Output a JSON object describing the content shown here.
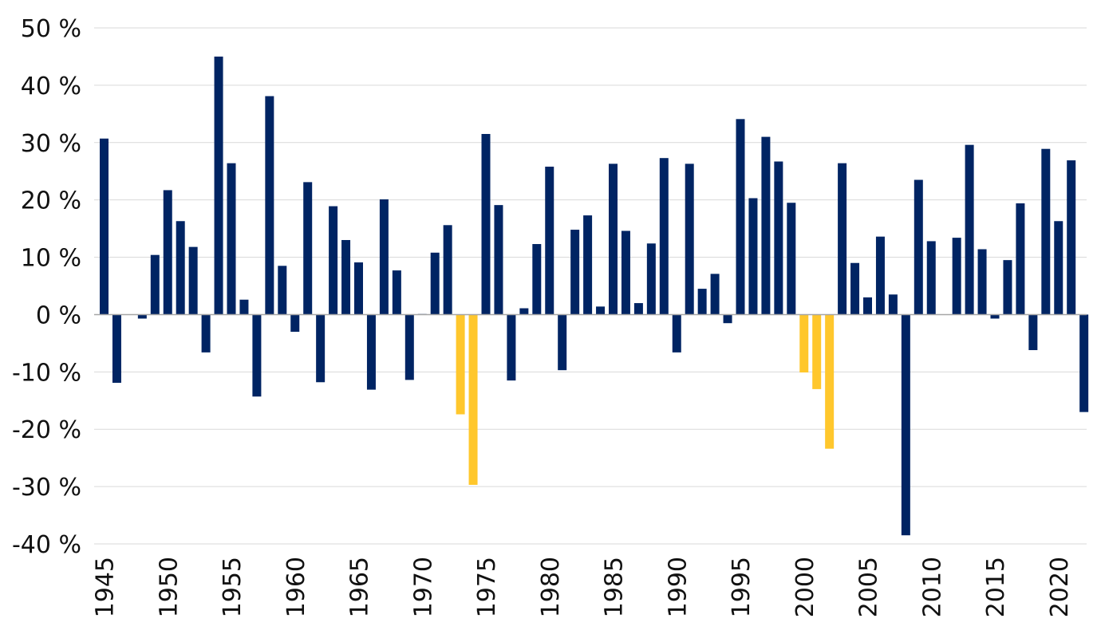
{
  "chart_data": {
    "type": "bar",
    "title": "",
    "xlabel": "",
    "ylabel": "",
    "ylim": [
      -40,
      50
    ],
    "y_ticks": [
      50,
      40,
      30,
      20,
      10,
      0,
      -10,
      -20,
      -30,
      -40
    ],
    "y_tick_labels": [
      "50 %",
      "40 %",
      "30 %",
      "20 %",
      "10 %",
      "0 %",
      "-10 %",
      "-20 %",
      "-30 %",
      "-40 %"
    ],
    "x_tick_labels": [
      "1945",
      "1950",
      "1955",
      "1960",
      "1965",
      "1970",
      "1975",
      "1980",
      "1985",
      "1990",
      "1995",
      "2000",
      "2005",
      "2010",
      "2015",
      "2020"
    ],
    "grid": true,
    "legend": "none",
    "colors": {
      "default": "#002463",
      "highlight": "#ffc72c"
    },
    "highlight_years": [
      1973,
      1974,
      2000,
      2001,
      2002
    ],
    "categories": [
      1945,
      1946,
      1947,
      1948,
      1949,
      1950,
      1951,
      1952,
      1953,
      1954,
      1955,
      1956,
      1957,
      1958,
      1959,
      1960,
      1961,
      1962,
      1963,
      1964,
      1965,
      1966,
      1967,
      1968,
      1969,
      1970,
      1971,
      1972,
      1973,
      1974,
      1975,
      1976,
      1977,
      1978,
      1979,
      1980,
      1981,
      1982,
      1983,
      1984,
      1985,
      1986,
      1987,
      1988,
      1989,
      1990,
      1991,
      1992,
      1993,
      1994,
      1995,
      1996,
      1997,
      1998,
      1999,
      2000,
      2001,
      2002,
      2003,
      2004,
      2005,
      2006,
      2007,
      2008,
      2009,
      2010,
      2011,
      2012,
      2013,
      2014,
      2015,
      2016,
      2017,
      2018,
      2019,
      2020,
      2021,
      2022
    ],
    "values": [
      30.7,
      -11.9,
      0,
      -0.7,
      10.4,
      21.7,
      16.3,
      11.8,
      -6.6,
      45.0,
      26.4,
      2.6,
      -14.3,
      38.1,
      8.5,
      -3.0,
      23.1,
      -11.8,
      18.9,
      13.0,
      9.1,
      -13.1,
      20.1,
      7.7,
      -11.4,
      0.1,
      10.8,
      15.6,
      -17.4,
      -29.7,
      31.5,
      19.1,
      -11.5,
      1.1,
      12.3,
      25.8,
      -9.7,
      14.8,
      17.3,
      1.4,
      26.3,
      14.6,
      2.0,
      12.4,
      27.3,
      -6.6,
      26.3,
      4.5,
      7.1,
      -1.5,
      34.1,
      20.3,
      31.0,
      26.7,
      19.5,
      -10.1,
      -13.0,
      -23.4,
      26.4,
      9.0,
      3.0,
      13.6,
      3.5,
      -38.5,
      23.5,
      12.8,
      0,
      13.4,
      29.6,
      11.4,
      -0.7,
      9.5,
      19.4,
      -6.2,
      28.9,
      16.3,
      26.9,
      -17.0
    ]
  }
}
